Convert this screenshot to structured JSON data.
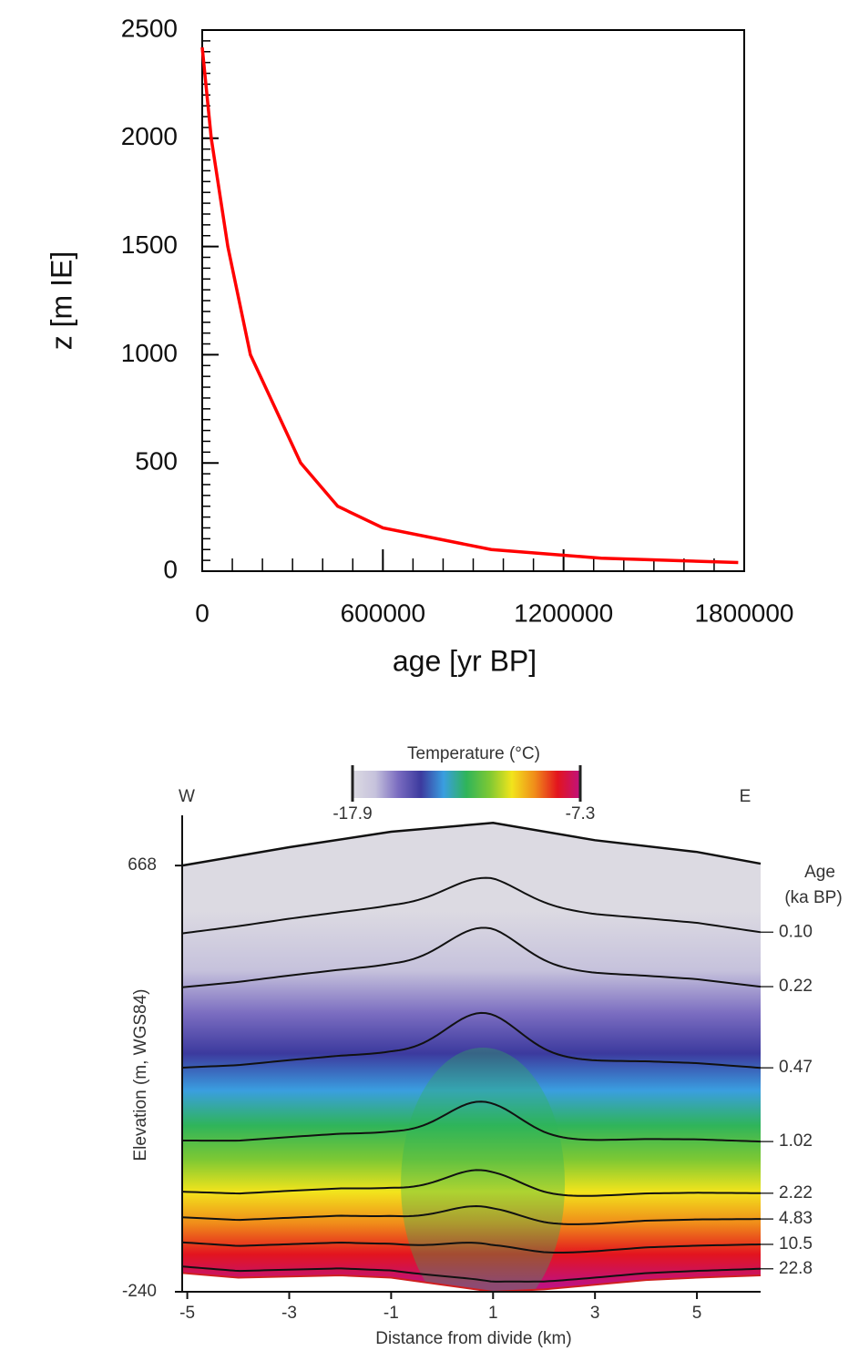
{
  "chart_data": [
    {
      "type": "line",
      "xlabel": "age  [yr BP]",
      "ylabel": "z  [m IE]",
      "color": "#ff0000",
      "x": [
        0,
        30000,
        85000,
        160000,
        327000,
        450000,
        600000,
        960000,
        1325000,
        1780000
      ],
      "values": [
        2420,
        2000,
        1500,
        1000,
        500,
        300,
        200,
        100,
        60,
        40
      ],
      "xlim": [
        0,
        1800000
      ],
      "ylim": [
        0,
        2500
      ],
      "xticks": [
        0,
        600000,
        1200000,
        1800000
      ],
      "yticks": [
        0,
        500,
        1000,
        1500,
        2000,
        2500
      ],
      "minor_xtick_step": 100000,
      "minor_ytick_step": 50
    },
    {
      "type": "section",
      "xlabel": "Distance from divide (km)",
      "ylabel": "Elevation (m, WGS84)",
      "left_label": "W",
      "right_label": "E",
      "colorbar": {
        "title": "Temperature (°C)",
        "ticks": [
          -17.9,
          -7.3
        ]
      },
      "colormap": [
        "#dcdae2",
        "#c6c2dc",
        "#7a6cc0",
        "#3c3a9e",
        "#3a9ee0",
        "#2fb45a",
        "#7cc834",
        "#f2e41c",
        "#f08c1a",
        "#e3141e",
        "#c0127e"
      ],
      "xlim": [
        -5.1,
        6.25
      ],
      "ylim": [
        -240,
        775
      ],
      "xticks": [
        -5,
        -3,
        -1,
        1,
        3,
        5
      ],
      "yticks": [
        -240,
        668
      ],
      "surface": {
        "x": [
          -5.1,
          -3,
          -1,
          1,
          3,
          5,
          6.25
        ],
        "values": [
          668,
          707,
          740,
          759,
          722,
          697,
          672
        ]
      },
      "bed": {
        "x": [
          -5.1,
          -4,
          -2,
          -1,
          0,
          1,
          2,
          3,
          4,
          5,
          6.25
        ],
        "values": [
          -200,
          -210,
          -205,
          -210,
          -225,
          -240,
          -235,
          -225,
          -215,
          -210,
          -205
        ]
      },
      "age_title": "Age",
      "age_unit": "(ka BP)",
      "age_layers": [
        {
          "label": "0.10",
          "elevation": 526
        },
        {
          "label": "0.22",
          "elevation": 410
        },
        {
          "label": "0.47",
          "elevation": 237
        },
        {
          "label": "1.02",
          "elevation": 80
        },
        {
          "label": "2.22",
          "elevation": -30
        },
        {
          "label": "4.83",
          "elevation": -85
        },
        {
          "label": "10.5",
          "elevation": -139
        },
        {
          "label": "22.8",
          "elevation": -191
        }
      ]
    }
  ]
}
